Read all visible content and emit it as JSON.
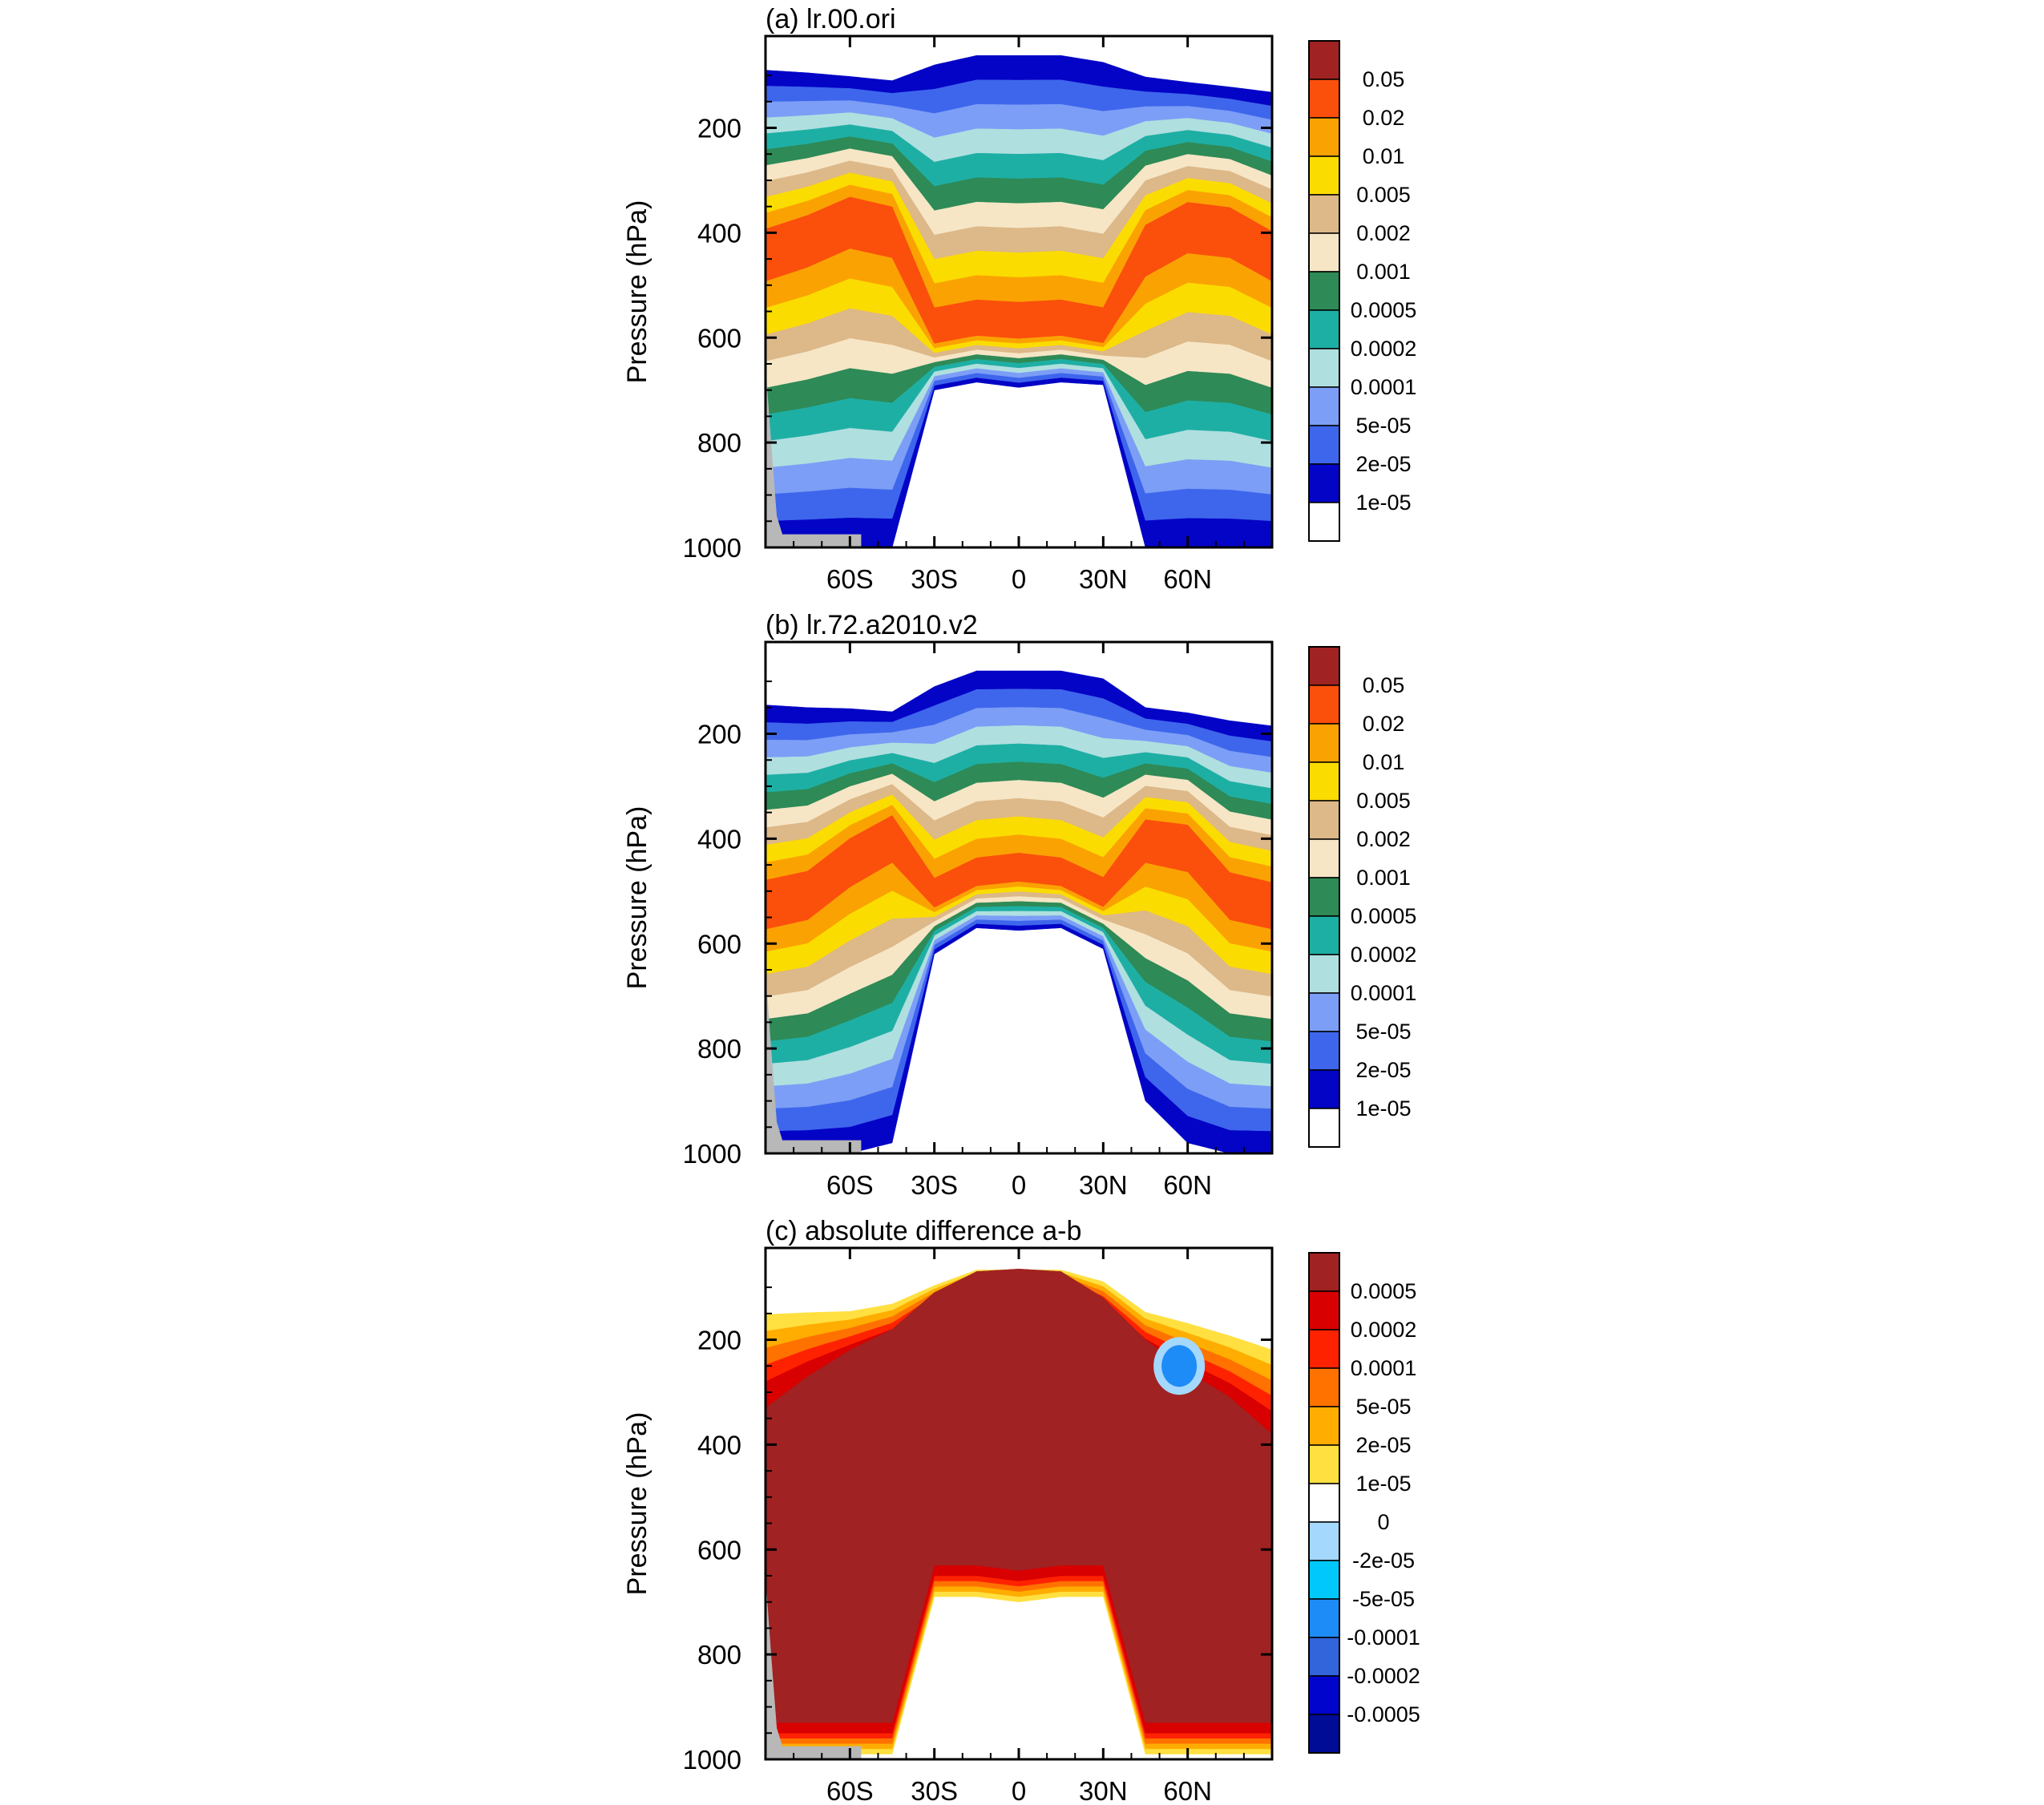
{
  "chart_data": [
    {
      "type": "contour",
      "title": "(a) lr.00.ori",
      "ylabel": "Pressure (hPa)",
      "xlabel": "",
      "x_ticks": [
        "60S",
        "30S",
        "0",
        "30N",
        "60N"
      ],
      "x_tick_values": [
        -60,
        -30,
        0,
        30,
        60
      ],
      "y_ticks": [
        "200",
        "400",
        "600",
        "800",
        "1000"
      ],
      "y_tick_values": [
        200,
        400,
        600,
        800,
        1000
      ],
      "xlim": [
        -90,
        90
      ],
      "ylim": [
        1000,
        25
      ],
      "legend": {
        "labels": [
          "0.05",
          "0.02",
          "0.01",
          "0.005",
          "0.002",
          "0.001",
          "0.0005",
          "0.0002",
          "0.0001",
          "5e-05",
          "2e-05",
          "1e-05"
        ],
        "colors": [
          "#a02222",
          "#fb4f0c",
          "#fba203",
          "#fbdc00",
          "#ddb888",
          "#f6e6c6",
          "#2e8a56",
          "#1eafa4",
          "#b0dfe0",
          "#7c9ef6",
          "#3e66ec",
          "#0404c6",
          "#ffffff"
        ]
      },
      "profile": {
        "lat": [
          -90,
          -75,
          -60,
          -45,
          -30,
          -15,
          0,
          15,
          30,
          45,
          60,
          75,
          90
        ],
        "top_p": [
          90,
          95,
          102,
          110,
          80,
          62,
          62,
          62,
          75,
          103,
          113,
          122,
          132
        ],
        "core_p": [
          430,
          400,
          360,
          380,
          600,
          585,
          590,
          585,
          600,
          420,
          370,
          380,
          430
        ],
        "bottom_p": [
          1000,
          1000,
          1000,
          1000,
          700,
          685,
          695,
          685,
          690,
          1000,
          1000,
          1000,
          1000
        ]
      }
    },
    {
      "type": "contour",
      "title": "(b) lr.72.a2010.v2",
      "ylabel": "Pressure (hPa)",
      "xlabel": "",
      "x_ticks": [
        "60S",
        "30S",
        "0",
        "30N",
        "60N"
      ],
      "x_tick_values": [
        -60,
        -30,
        0,
        30,
        60
      ],
      "y_ticks": [
        "200",
        "400",
        "600",
        "800",
        "1000"
      ],
      "y_tick_values": [
        200,
        400,
        600,
        800,
        1000
      ],
      "xlim": [
        -90,
        90
      ],
      "ylim": [
        1000,
        25
      ],
      "legend": {
        "labels": [
          "0.05",
          "0.02",
          "0.01",
          "0.005",
          "0.002",
          "0.001",
          "0.0005",
          "0.0002",
          "0.0001",
          "5e-05",
          "2e-05",
          "1e-05"
        ],
        "colors": [
          "#a02222",
          "#fb4f0c",
          "#fba203",
          "#fbdc00",
          "#ddb888",
          "#f6e6c6",
          "#2e8a56",
          "#1eafa4",
          "#b0dfe0",
          "#7c9ef6",
          "#3e66ec",
          "#0404c6",
          "#ffffff"
        ]
      },
      "profile": {
        "lat": [
          -90,
          -75,
          -60,
          -45,
          -30,
          -15,
          0,
          15,
          30,
          45,
          60,
          75,
          90
        ],
        "top_p": [
          145,
          150,
          152,
          158,
          110,
          80,
          80,
          80,
          95,
          150,
          160,
          175,
          185
        ],
        "core_p": [
          520,
          500,
          430,
          380,
          520,
          480,
          470,
          480,
          520,
          390,
          400,
          500,
          520
        ],
        "bottom_p": [
          1000,
          1000,
          1000,
          980,
          620,
          570,
          575,
          570,
          610,
          900,
          980,
          1000,
          1000
        ]
      }
    },
    {
      "type": "contour",
      "title": "(c) absolute difference a-b",
      "ylabel": "Pressure (hPa)",
      "xlabel": "",
      "x_ticks": [
        "60S",
        "30S",
        "0",
        "30N",
        "60N"
      ],
      "x_tick_values": [
        -60,
        -30,
        0,
        30,
        60
      ],
      "y_ticks": [
        "200",
        "400",
        "600",
        "800",
        "1000"
      ],
      "y_tick_values": [
        200,
        400,
        600,
        800,
        1000
      ],
      "xlim": [
        -90,
        90
      ],
      "ylim": [
        1000,
        25
      ],
      "legend": {
        "labels": [
          "0.0005",
          "0.0002",
          "0.0001",
          "5e-05",
          "2e-05",
          "1e-05",
          "0",
          "-2e-05",
          "-5e-05",
          "-0.0001",
          "-0.0002",
          "-0.0005"
        ],
        "colors": [
          "#a02222",
          "#d80000",
          "#ff2200",
          "#ff7200",
          "#ffad00",
          "#ffe040",
          "#ffffff",
          "#a4d8fc",
          "#00c8fc",
          "#1e8cf6",
          "#3264dc",
          "#0004cc",
          "#000c96"
        ]
      },
      "profile": {
        "lat": [
          -90,
          -75,
          -60,
          -45,
          -30,
          -15,
          0,
          15,
          30,
          45,
          60,
          75,
          90
        ],
        "top_p": [
          120,
          125,
          130,
          120,
          90,
          62,
          62,
          62,
          80,
          135,
          150,
          170,
          190
        ],
        "dark_top_p": [
          360,
          300,
          250,
          210,
          140,
          100,
          95,
          100,
          150,
          230,
          290,
          340,
          410
        ],
        "bottom_p": [
          1000,
          1000,
          1000,
          1000,
          700,
          700,
          710,
          700,
          700,
          1000,
          1000,
          1000,
          1000
        ]
      }
    }
  ]
}
